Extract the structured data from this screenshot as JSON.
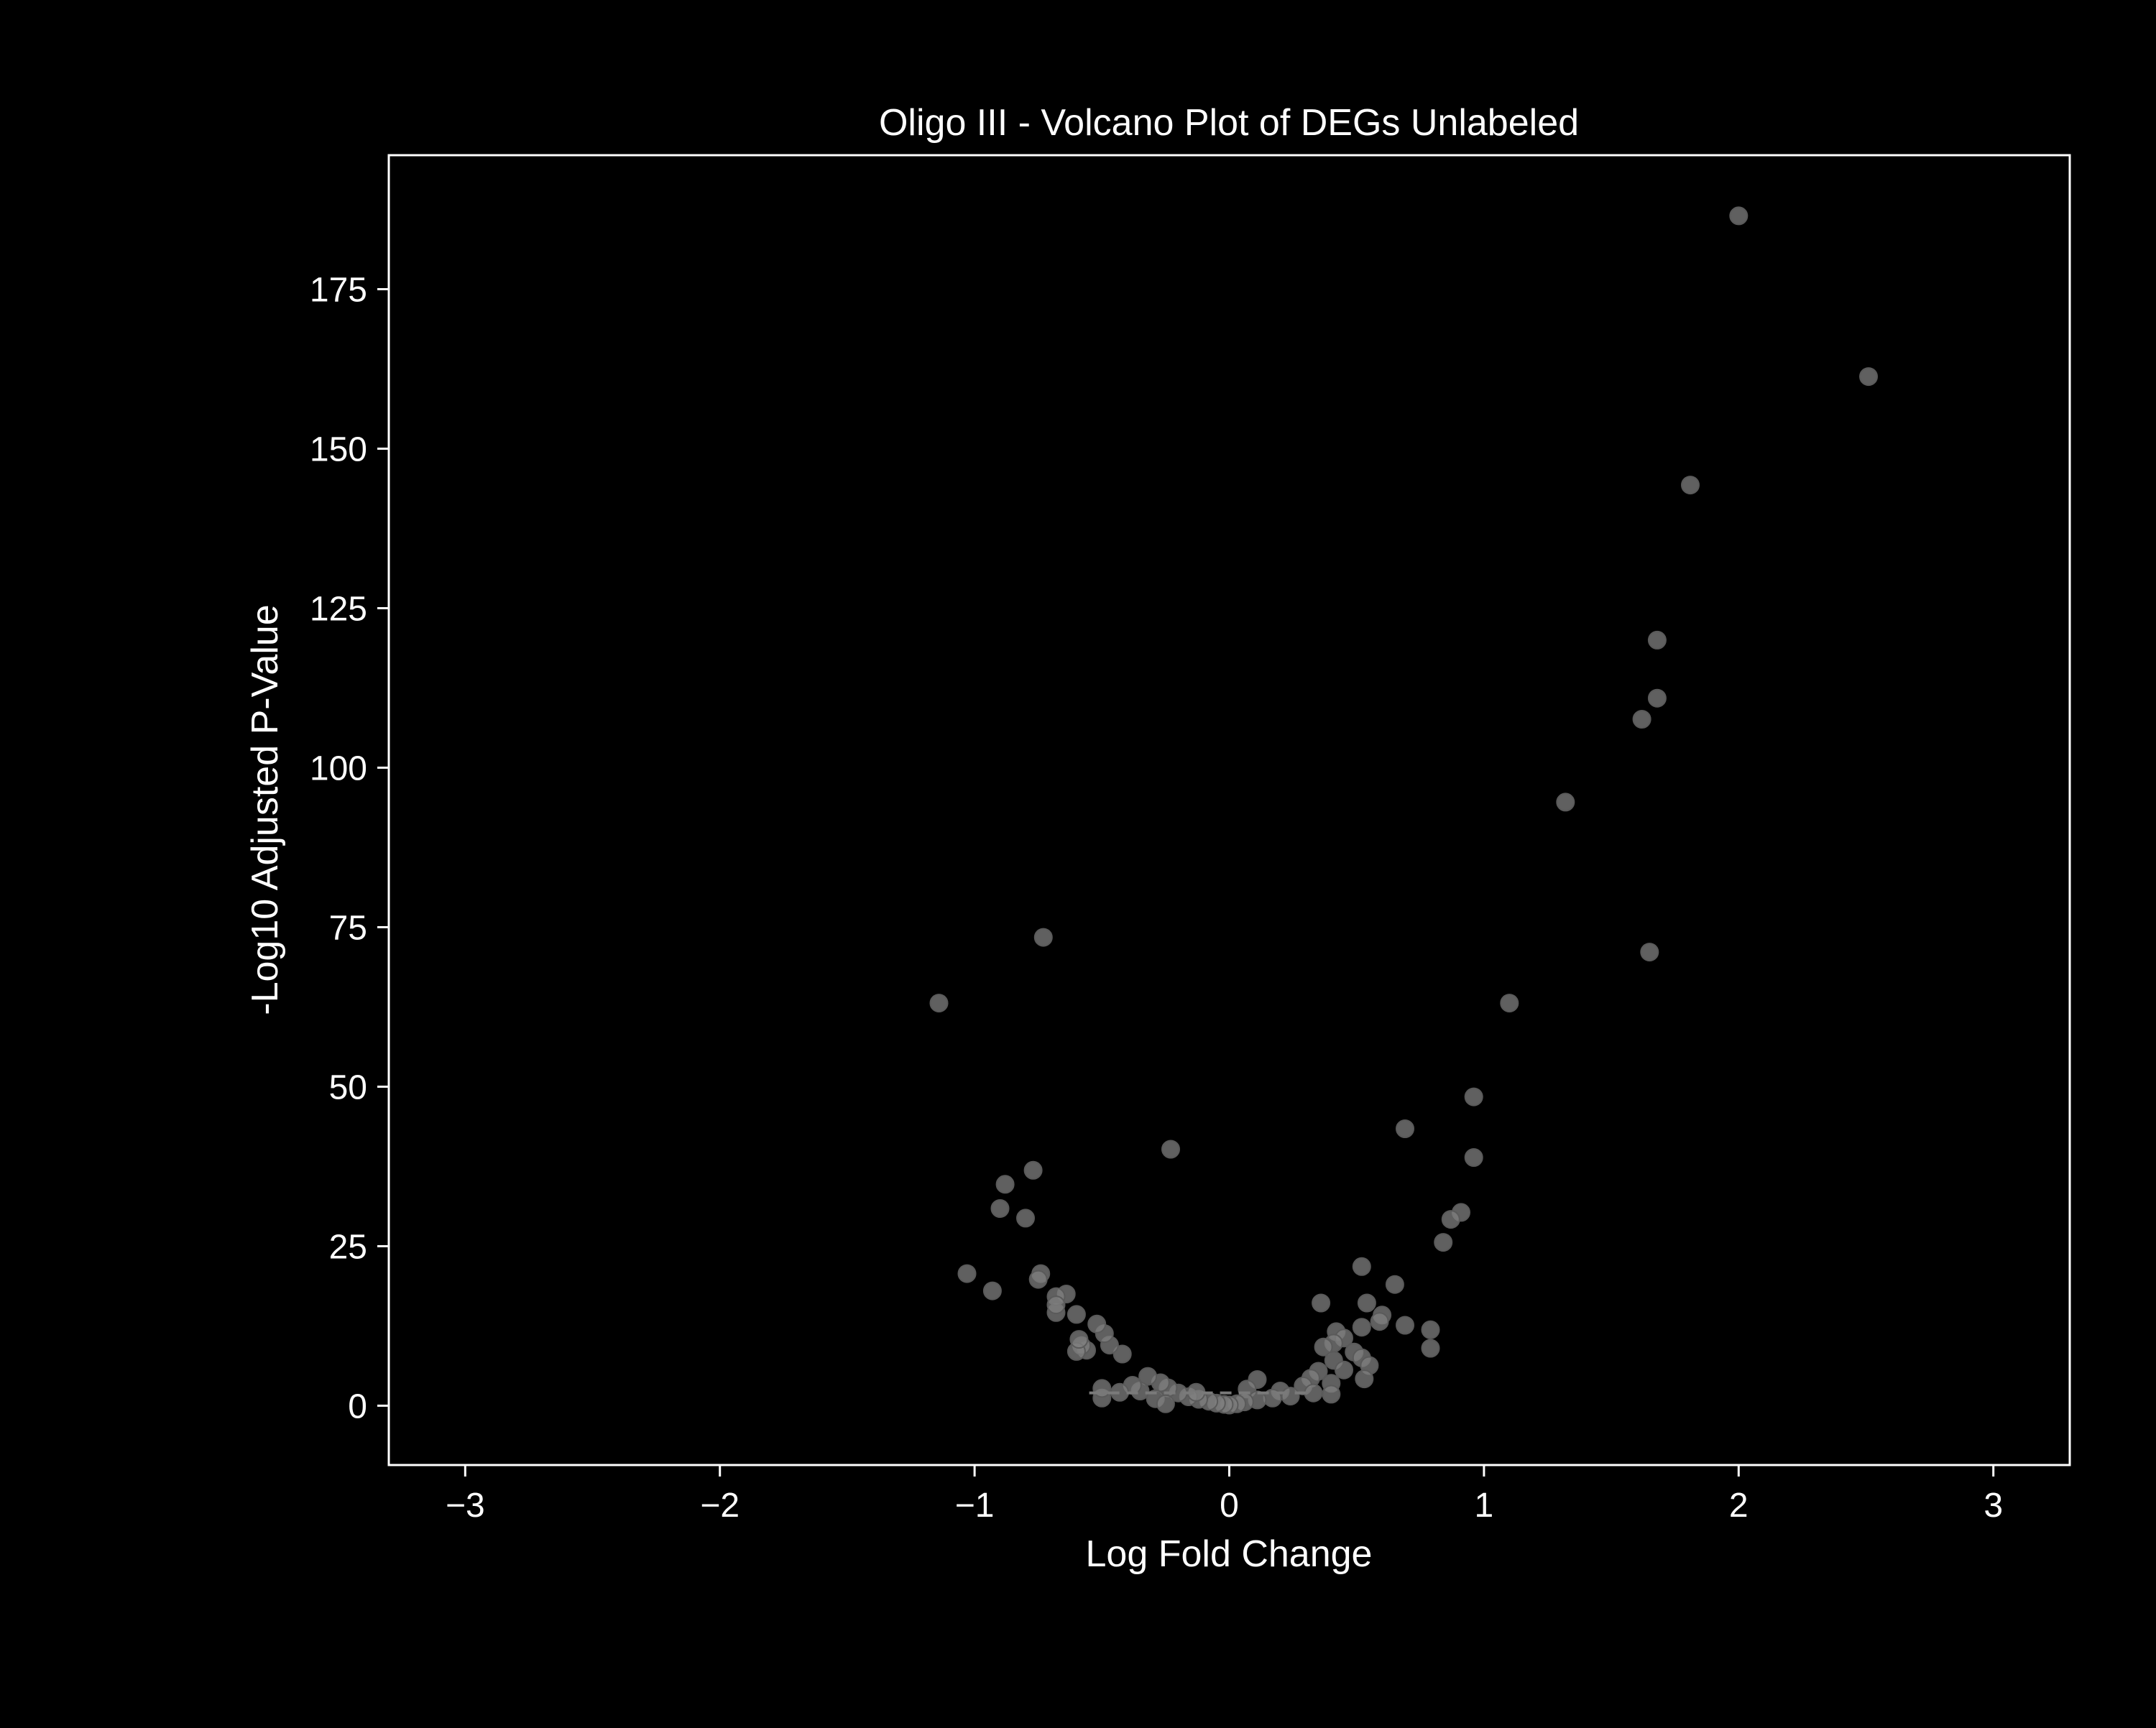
{
  "chart_data": {
    "type": "scatter",
    "title": "Oligo III - Volcano Plot of DEGs Unlabeled",
    "xlabel": "Log Fold Change",
    "ylabel": "-Log10 Adjusted P-Value",
    "xlim": [
      -3.3,
      3.3
    ],
    "ylim": [
      -9.3,
      196
    ],
    "xticks": [
      -3,
      -2,
      -1,
      0,
      1,
      2,
      3
    ],
    "xtick_labels": [
      "−3",
      "−2",
      "−1",
      "0",
      "1",
      "2",
      "3"
    ],
    "yticks": [
      0,
      25,
      50,
      75,
      100,
      125,
      150,
      175
    ],
    "ytick_labels": [
      "0",
      "25",
      "50",
      "75",
      "100",
      "125",
      "150",
      "175"
    ],
    "grid": false,
    "colors": {
      "background": "#000000",
      "axes": "#ffffff",
      "text": "#ffffff",
      "points": "#808080",
      "threshold_line": "#7a7a7a"
    },
    "threshold_line": {
      "y": 2,
      "x_range": [
        -0.55,
        0.3
      ],
      "style": "dashed"
    },
    "series": [
      {
        "points": [
          {
            "x": 2.0,
            "y": 186.5
          },
          {
            "x": 2.51,
            "y": 161.3
          },
          {
            "x": 1.81,
            "y": 144.3
          },
          {
            "x": 1.68,
            "y": 120.0
          },
          {
            "x": 1.68,
            "y": 110.9
          },
          {
            "x": 1.62,
            "y": 107.6
          },
          {
            "x": 1.32,
            "y": 94.6
          },
          {
            "x": 1.65,
            "y": 71.1
          },
          {
            "x": 1.1,
            "y": 63.1
          },
          {
            "x": 0.96,
            "y": 48.4
          },
          {
            "x": 0.69,
            "y": 43.4
          },
          {
            "x": 0.96,
            "y": 38.9
          },
          {
            "x": 0.91,
            "y": 30.3
          },
          {
            "x": 0.87,
            "y": 29.2
          },
          {
            "x": 0.84,
            "y": 25.6
          },
          {
            "x": 0.52,
            "y": 21.8
          },
          {
            "x": 0.65,
            "y": 19.0
          },
          {
            "x": 0.36,
            "y": 16.1
          },
          {
            "x": 0.54,
            "y": 16.1
          },
          {
            "x": 0.6,
            "y": 14.2
          },
          {
            "x": 0.59,
            "y": 13.2
          },
          {
            "x": 0.69,
            "y": 12.6
          },
          {
            "x": 0.52,
            "y": 12.3
          },
          {
            "x": 0.79,
            "y": 11.9
          },
          {
            "x": 0.42,
            "y": 11.6
          },
          {
            "x": 0.45,
            "y": 10.6
          },
          {
            "x": 0.41,
            "y": 9.8
          },
          {
            "x": 0.37,
            "y": 9.2
          },
          {
            "x": 0.79,
            "y": 9.0
          },
          {
            "x": 0.49,
            "y": 8.4
          },
          {
            "x": 0.52,
            "y": 7.5
          },
          {
            "x": 0.41,
            "y": 7.1
          },
          {
            "x": 0.55,
            "y": 6.3
          },
          {
            "x": 0.45,
            "y": 5.6
          },
          {
            "x": 0.35,
            "y": 5.4
          },
          {
            "x": 0.53,
            "y": 4.2
          },
          {
            "x": 0.32,
            "y": 4.3
          },
          {
            "x": 0.4,
            "y": 3.5
          },
          {
            "x": 0.29,
            "y": 3.1
          },
          {
            "x": 0.11,
            "y": 4.1
          },
          {
            "x": 0.07,
            "y": 2.6
          },
          {
            "x": 0.2,
            "y": 2.3
          },
          {
            "x": 0.4,
            "y": 1.8
          },
          {
            "x": 0.33,
            "y": 2.0
          },
          {
            "x": 0.24,
            "y": 1.5
          },
          {
            "x": 0.17,
            "y": 1.2
          },
          {
            "x": 0.11,
            "y": 0.9
          },
          {
            "x": 0.06,
            "y": 0.6
          },
          {
            "x": 0.03,
            "y": 0.3
          },
          {
            "x": 0.0,
            "y": 0.1
          },
          {
            "x": -0.02,
            "y": 0.2
          },
          {
            "x": -0.05,
            "y": 0.4
          },
          {
            "x": -0.08,
            "y": 0.7
          },
          {
            "x": -0.12,
            "y": 1.0
          },
          {
            "x": -0.16,
            "y": 1.4
          },
          {
            "x": -0.2,
            "y": 2.0
          },
          {
            "x": -0.13,
            "y": 2.1
          },
          {
            "x": -0.24,
            "y": 2.8
          },
          {
            "x": -0.27,
            "y": 3.6
          },
          {
            "x": -0.32,
            "y": 4.6
          },
          {
            "x": -0.29,
            "y": 1.1
          },
          {
            "x": -0.35,
            "y": 2.3
          },
          {
            "x": -0.38,
            "y": 3.2
          },
          {
            "x": -0.43,
            "y": 2.1
          },
          {
            "x": -0.25,
            "y": 0.3
          },
          {
            "x": -0.5,
            "y": 1.2
          },
          {
            "x": -0.5,
            "y": 2.7
          },
          {
            "x": -0.42,
            "y": 8.1
          },
          {
            "x": -0.47,
            "y": 9.5
          },
          {
            "x": -0.49,
            "y": 11.3
          },
          {
            "x": -0.52,
            "y": 12.8
          },
          {
            "x": -0.56,
            "y": 8.7
          },
          {
            "x": -0.58,
            "y": 9.4
          },
          {
            "x": -0.6,
            "y": 8.5
          },
          {
            "x": -0.59,
            "y": 10.4
          },
          {
            "x": -0.6,
            "y": 14.3
          },
          {
            "x": -0.64,
            "y": 17.5
          },
          {
            "x": -0.68,
            "y": 14.6
          },
          {
            "x": -0.68,
            "y": 17.1
          },
          {
            "x": -0.68,
            "y": 15.8
          },
          {
            "x": -0.74,
            "y": 20.7
          },
          {
            "x": -0.75,
            "y": 19.8
          },
          {
            "x": -0.8,
            "y": 29.4
          },
          {
            "x": -0.77,
            "y": 36.9
          },
          {
            "x": -0.88,
            "y": 34.7
          },
          {
            "x": -0.9,
            "y": 30.9
          },
          {
            "x": -0.93,
            "y": 18.0
          },
          {
            "x": -1.03,
            "y": 20.7
          },
          {
            "x": -1.14,
            "y": 63.1
          },
          {
            "x": -0.73,
            "y": 73.4
          },
          {
            "x": -0.23,
            "y": 40.2
          }
        ]
      }
    ]
  }
}
